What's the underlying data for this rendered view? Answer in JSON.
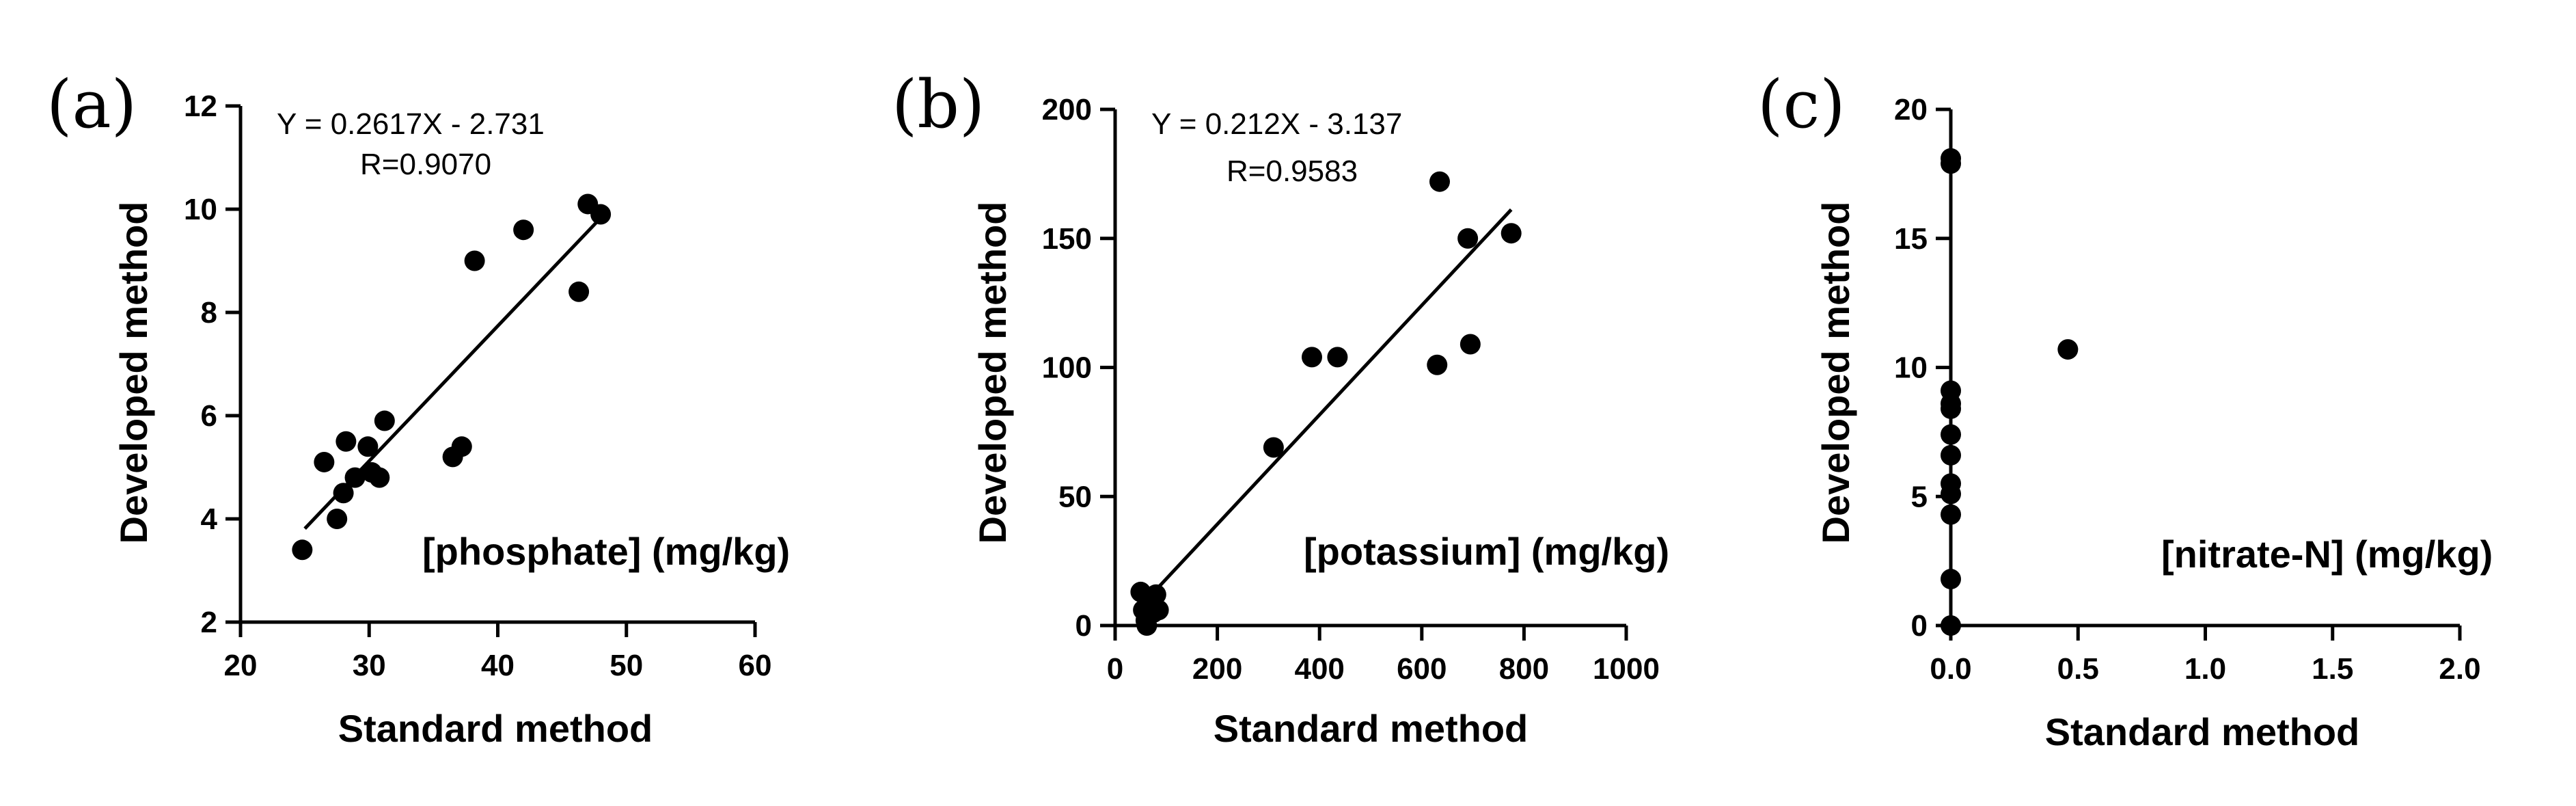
{
  "chart_data": [
    {
      "type": "scatter",
      "panel": "(a)",
      "series_label": "[phosphate] (mg/kg)",
      "xlabel": "Standard method",
      "ylabel": "Developed method",
      "xlim": [
        20,
        60
      ],
      "ylim": [
        2,
        12
      ],
      "xticks": [
        20,
        30,
        40,
        50,
        60
      ],
      "yticks": [
        2,
        4,
        6,
        8,
        10,
        12
      ],
      "equation": "Y = 0.2617X - 2.731",
      "r_text": "R=0.9070",
      "fit": {
        "slope": 0.2617,
        "intercept": -2.731,
        "x_range": [
          25,
          48
        ]
      },
      "points": [
        {
          "x": 24.8,
          "y": 3.4
        },
        {
          "x": 26.5,
          "y": 5.1
        },
        {
          "x": 27.5,
          "y": 4.0
        },
        {
          "x": 28.0,
          "y": 4.5
        },
        {
          "x": 28.2,
          "y": 5.5
        },
        {
          "x": 28.9,
          "y": 4.8
        },
        {
          "x": 29.9,
          "y": 5.4
        },
        {
          "x": 30.2,
          "y": 4.9
        },
        {
          "x": 30.8,
          "y": 4.8
        },
        {
          "x": 31.2,
          "y": 5.9
        },
        {
          "x": 36.5,
          "y": 5.2
        },
        {
          "x": 37.2,
          "y": 5.4
        },
        {
          "x": 38.2,
          "y": 9.0
        },
        {
          "x": 42.0,
          "y": 9.6
        },
        {
          "x": 46.3,
          "y": 8.4
        },
        {
          "x": 47.0,
          "y": 10.1
        },
        {
          "x": 48.0,
          "y": 9.9
        }
      ]
    },
    {
      "type": "scatter",
      "panel": "(b)",
      "series_label": "[potassium] (mg/kg)",
      "xlabel": "Standard method",
      "ylabel": "Developed method",
      "xlim": [
        0,
        1000
      ],
      "ylim": [
        0,
        200
      ],
      "xticks": [
        0,
        200,
        400,
        600,
        800,
        1000
      ],
      "yticks": [
        0,
        50,
        100,
        150,
        200
      ],
      "equation": "Y = 0.212X - 3.137",
      "r_text": "R=0.9583",
      "fit": {
        "slope": 0.212,
        "intercept": -3.137,
        "x_range": [
          60,
          775
        ]
      },
      "points": [
        {
          "x": 50,
          "y": 13
        },
        {
          "x": 55,
          "y": 6
        },
        {
          "x": 60,
          "y": 2
        },
        {
          "x": 62,
          "y": 0
        },
        {
          "x": 70,
          "y": 9
        },
        {
          "x": 75,
          "y": 5
        },
        {
          "x": 80,
          "y": 12
        },
        {
          "x": 85,
          "y": 6
        },
        {
          "x": 310,
          "y": 69
        },
        {
          "x": 385,
          "y": 104
        },
        {
          "x": 435,
          "y": 104
        },
        {
          "x": 630,
          "y": 101
        },
        {
          "x": 635,
          "y": 172
        },
        {
          "x": 690,
          "y": 150
        },
        {
          "x": 695,
          "y": 109
        },
        {
          "x": 775,
          "y": 152
        }
      ]
    },
    {
      "type": "scatter",
      "panel": "(c)",
      "series_label": "[nitrate-N] (mg/kg)",
      "xlabel": "Standard method",
      "ylabel": "Developed method",
      "xlim": [
        0,
        2
      ],
      "ylim": [
        0,
        20
      ],
      "xticks": [
        "0.0",
        "0.5",
        "1.0",
        "1.5",
        "2.0"
      ],
      "yticks": [
        0,
        5,
        10,
        15,
        20
      ],
      "points": [
        {
          "x": 0,
          "y": 0
        },
        {
          "x": 0,
          "y": 1.8
        },
        {
          "x": 0,
          "y": 4.3
        },
        {
          "x": 0,
          "y": 5.1
        },
        {
          "x": 0,
          "y": 5.5
        },
        {
          "x": 0,
          "y": 6.6
        },
        {
          "x": 0,
          "y": 7.4
        },
        {
          "x": 0,
          "y": 8.4
        },
        {
          "x": 0,
          "y": 8.6
        },
        {
          "x": 0,
          "y": 9.1
        },
        {
          "x": 0,
          "y": 17.9
        },
        {
          "x": 0,
          "y": 18.1
        },
        {
          "x": 0.46,
          "y": 10.7
        }
      ]
    }
  ]
}
